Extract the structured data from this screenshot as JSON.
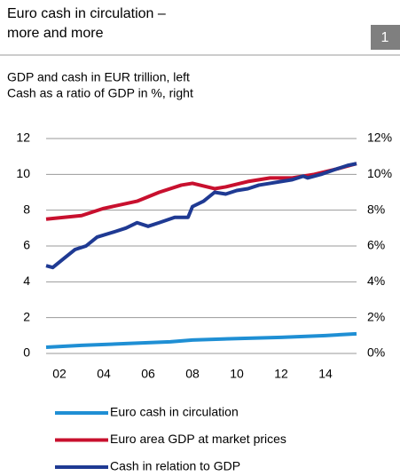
{
  "chart_data": {
    "type": "line",
    "title": [
      "Euro cash in circulation –",
      "more and more"
    ],
    "badge": "1",
    "subtitle": [
      "GDP and cash in EUR trillion, left",
      "Cash as a ratio of GDP in %, right"
    ],
    "xlim": [
      2001.4,
      2015.4
    ],
    "xticks": [
      {
        "value": 2002,
        "label": "02"
      },
      {
        "value": 2004,
        "label": "04"
      },
      {
        "value": 2006,
        "label": "06"
      },
      {
        "value": 2008,
        "label": "08"
      },
      {
        "value": 2010,
        "label": "10"
      },
      {
        "value": 2012,
        "label": "12"
      },
      {
        "value": 2014,
        "label": "14"
      }
    ],
    "ylim": [
      0,
      12
    ],
    "yticks": [
      0,
      2,
      4,
      6,
      8,
      10,
      12
    ],
    "y2lim": [
      0,
      12
    ],
    "y2ticks": [
      {
        "value": 0,
        "label": "0%"
      },
      {
        "value": 2,
        "label": "2%"
      },
      {
        "value": 4,
        "label": "4%"
      },
      {
        "value": 6,
        "label": "6%"
      },
      {
        "value": 8,
        "label": "8%"
      },
      {
        "value": 10,
        "label": "10%"
      },
      {
        "value": 12,
        "label": "12%"
      }
    ],
    "grid": true,
    "series": [
      {
        "name": "Euro cash in circulation",
        "color": "#1f8fd4",
        "x": [
          2001.4,
          2003,
          2005,
          2007,
          2008,
          2010,
          2012,
          2014,
          2015.4
        ],
        "values": [
          0.35,
          0.45,
          0.55,
          0.65,
          0.75,
          0.83,
          0.9,
          1.0,
          1.1
        ]
      },
      {
        "name": "Euro area GDP at market prices",
        "color": "#c8102e",
        "x": [
          2001.4,
          2003,
          2004,
          2005.5,
          2006.5,
          2007.5,
          2008,
          2009,
          2009.5,
          2010.5,
          2011.5,
          2012.5,
          2013.5,
          2014.5,
          2015.4
        ],
        "values": [
          7.5,
          7.7,
          8.1,
          8.5,
          9.0,
          9.4,
          9.5,
          9.2,
          9.3,
          9.6,
          9.8,
          9.8,
          10.0,
          10.3,
          10.6
        ]
      },
      {
        "name": "Cash in relation to GDP",
        "color": "#1f3a93",
        "axis": "y2",
        "x": [
          2001.4,
          2001.7,
          2002.2,
          2002.7,
          2003.2,
          2003.7,
          2004.5,
          2005,
          2005.5,
          2006,
          2006.5,
          2007.2,
          2007.8,
          2008,
          2008.5,
          2009,
          2009.5,
          2010,
          2010.5,
          2011,
          2011.5,
          2012,
          2012.5,
          2013,
          2013.2,
          2013.8,
          2014.5,
          2015,
          2015.4
        ],
        "values": [
          4.9,
          4.8,
          5.3,
          5.8,
          6.0,
          6.5,
          6.8,
          7.0,
          7.3,
          7.1,
          7.3,
          7.6,
          7.6,
          8.2,
          8.5,
          9.0,
          8.9,
          9.1,
          9.2,
          9.4,
          9.5,
          9.6,
          9.7,
          9.9,
          9.8,
          10.0,
          10.3,
          10.5,
          10.6
        ]
      }
    ]
  }
}
